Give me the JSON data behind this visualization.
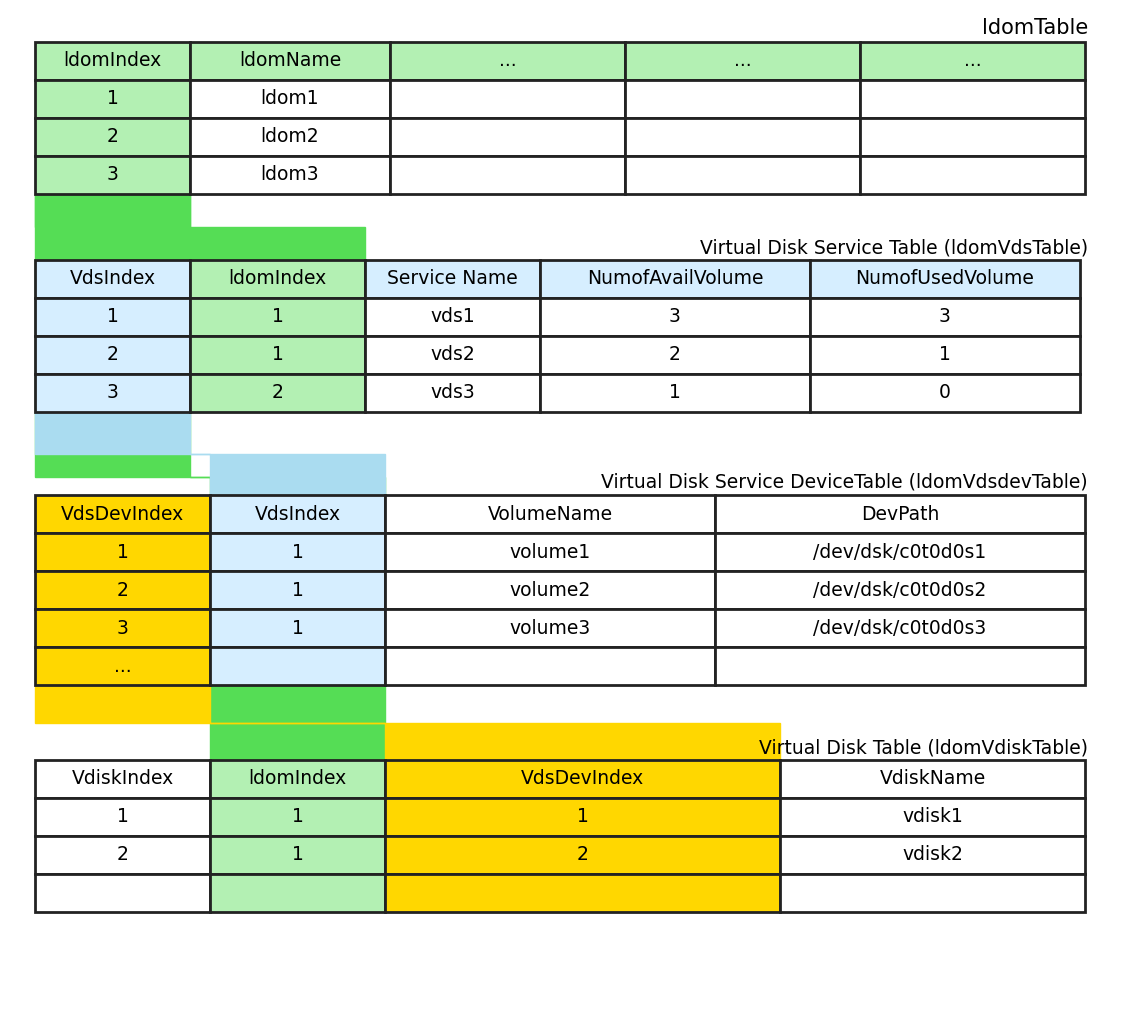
{
  "title_ldom": "ldomTable",
  "title_vds": "Virtual Disk Service Table (ldomVdsTable)",
  "title_vdsdev": "Virtual Disk Service DeviceTable (ldomVdsdevTable)",
  "title_vdisk": "Virtual Disk Table (ldomVdiskTable)",
  "ldom_headers": [
    "ldomIndex",
    "ldomName",
    "...",
    "...",
    "..."
  ],
  "ldom_rows": [
    [
      "1",
      "ldom1",
      "",
      "",
      ""
    ],
    [
      "2",
      "ldom2",
      "",
      "",
      ""
    ],
    [
      "3",
      "ldom3",
      "",
      "",
      ""
    ]
  ],
  "ldom_header_colors": [
    "#b3f0b3",
    "#b3f0b3",
    "#b3f0b3",
    "#b3f0b3",
    "#b3f0b3"
  ],
  "ldom_row_colors": [
    [
      "#b3f0b3",
      "#ffffff",
      "#ffffff",
      "#ffffff",
      "#ffffff"
    ],
    [
      "#b3f0b3",
      "#ffffff",
      "#ffffff",
      "#ffffff",
      "#ffffff"
    ],
    [
      "#b3f0b3",
      "#ffffff",
      "#ffffff",
      "#ffffff",
      "#ffffff"
    ]
  ],
  "vds_headers": [
    "VdsIndex",
    "ldomIndex",
    "Service Name",
    "NumofAvailVolume",
    "NumofUsedVolume"
  ],
  "vds_rows": [
    [
      "1",
      "1",
      "vds1",
      "3",
      "3"
    ],
    [
      "2",
      "1",
      "vds2",
      "2",
      "1"
    ],
    [
      "3",
      "2",
      "vds3",
      "1",
      "0"
    ]
  ],
  "vds_header_colors": [
    "#d6eeff",
    "#b3f0b3",
    "#d6eeff",
    "#d6eeff",
    "#d6eeff"
  ],
  "vds_row_colors": [
    [
      "#d6eeff",
      "#b3f0b3",
      "#ffffff",
      "#ffffff",
      "#ffffff"
    ],
    [
      "#d6eeff",
      "#b3f0b3",
      "#ffffff",
      "#ffffff",
      "#ffffff"
    ],
    [
      "#d6eeff",
      "#b3f0b3",
      "#ffffff",
      "#ffffff",
      "#ffffff"
    ]
  ],
  "vdsdev_headers": [
    "VdsDevIndex",
    "VdsIndex",
    "VolumeName",
    "DevPath"
  ],
  "vdsdev_rows": [
    [
      "1",
      "1",
      "volume1",
      "/dev/dsk/c0t0d0s1"
    ],
    [
      "2",
      "1",
      "volume2",
      "/dev/dsk/c0t0d0s2"
    ],
    [
      "3",
      "1",
      "volume3",
      "/dev/dsk/c0t0d0s3"
    ],
    [
      "...",
      "",
      "",
      ""
    ]
  ],
  "vdsdev_header_colors": [
    "#ffd700",
    "#d6eeff",
    "#ffffff",
    "#ffffff"
  ],
  "vdsdev_row_colors": [
    [
      "#ffd700",
      "#d6eeff",
      "#ffffff",
      "#ffffff"
    ],
    [
      "#ffd700",
      "#d6eeff",
      "#ffffff",
      "#ffffff"
    ],
    [
      "#ffd700",
      "#d6eeff",
      "#ffffff",
      "#ffffff"
    ],
    [
      "#ffd700",
      "#d6eeff",
      "#ffffff",
      "#ffffff"
    ]
  ],
  "vdisk_headers": [
    "VdiskIndex",
    "ldomIndex",
    "VdsDevIndex",
    "VdiskName"
  ],
  "vdisk_rows": [
    [
      "1",
      "1",
      "1",
      "vdisk1"
    ],
    [
      "2",
      "1",
      "2",
      "vdisk2"
    ],
    [
      "",
      "",
      "",
      ""
    ]
  ],
  "vdisk_header_colors": [
    "#ffffff",
    "#b3f0b3",
    "#ffd700",
    "#ffffff"
  ],
  "vdisk_row_colors": [
    [
      "#ffffff",
      "#b3f0b3",
      "#ffd700",
      "#ffffff"
    ],
    [
      "#ffffff",
      "#b3f0b3",
      "#ffd700",
      "#ffffff"
    ],
    [
      "#ffffff",
      "#b3f0b3",
      "#ffd700",
      "#ffffff"
    ]
  ],
  "connector_green": "#55dd55",
  "connector_blue": "#aadcf0",
  "connector_yellow": "#ffd700",
  "border_color": "#222222"
}
